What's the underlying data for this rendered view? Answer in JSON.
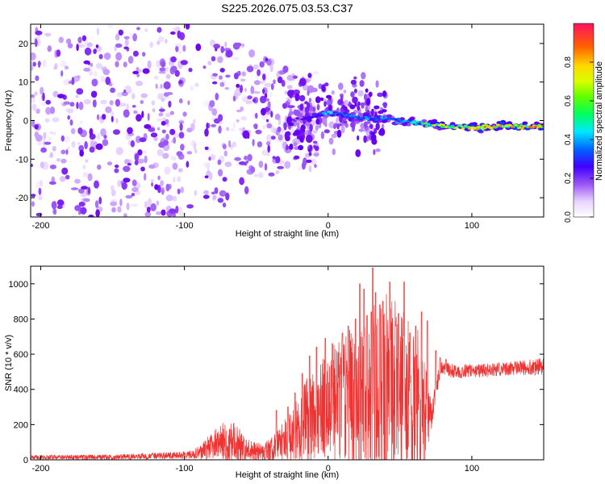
{
  "title": "S225.2026.075.03.53.C37",
  "chart_data": [
    {
      "type": "heatmap",
      "title": "S225.2026.075.03.53.C37",
      "xlabel": "Height of straight line (km)",
      "ylabel": "Frequency (Hz)",
      "xlim": [
        -207,
        150
      ],
      "ylim": [
        -25,
        25
      ],
      "x_ticks": [
        -200,
        -100,
        0,
        100
      ],
      "y_ticks": [
        -20,
        -10,
        0,
        10,
        20
      ],
      "colorbar": {
        "label": "Normalized spectral amplitude",
        "range": [
          0,
          1
        ],
        "ticks": [
          0.0,
          0.2,
          0.4,
          0.6,
          0.8
        ],
        "tick_labels": [
          "0.0",
          "0.2",
          "0.4",
          "0.6",
          "0.8"
        ],
        "colormap": [
          "#ffffff",
          "#d8b8ff",
          "#9a55f5",
          "#6a00f0",
          "#3a00ff",
          "#0064ff",
          "#00e8ff",
          "#00ff60",
          "#b8ff00",
          "#ffd800",
          "#ff6000",
          "#ff1060"
        ]
      },
      "ridge": {
        "x": [
          -25,
          -10,
          0,
          10,
          25,
          40,
          60,
          80,
          100,
          120,
          150
        ],
        "freq": [
          0.0,
          1.0,
          2.0,
          1.5,
          0.5,
          0.5,
          -0.5,
          -1.5,
          -1.8,
          -1.5,
          -1.5
        ],
        "peak_amplitude": [
          0.25,
          0.45,
          0.6,
          0.5,
          0.55,
          0.55,
          0.65,
          0.85,
          0.9,
          0.95,
          1.0
        ]
      }
    },
    {
      "type": "line",
      "xlabel": "Height of straight line (km)",
      "ylabel": "SNR (10 * v/v)",
      "xlim": [
        -207,
        150
      ],
      "ylim": [
        0,
        1100
      ],
      "x_ticks": [
        -200,
        -100,
        0,
        100
      ],
      "y_ticks": [
        0,
        200,
        400,
        600,
        800,
        1000
      ],
      "series": [
        {
          "name": "SNR",
          "color": "#ee3333",
          "envelope_x": [
            -207,
            -150,
            -105,
            -95,
            -85,
            -75,
            -65,
            -55,
            -45,
            -35,
            -25,
            -15,
            -5,
            5,
            15,
            25,
            35,
            45,
            55,
            65,
            72,
            78,
            90,
            110,
            130,
            150
          ],
          "envelope_base": [
            15,
            15,
            25,
            30,
            60,
            110,
            90,
            50,
            40,
            80,
            150,
            220,
            280,
            320,
            350,
            300,
            400,
            380,
            350,
            300,
            250,
            520,
            500,
            510,
            520,
            530
          ],
          "envelope_amp": [
            12,
            15,
            20,
            25,
            60,
            100,
            120,
            60,
            50,
            90,
            150,
            250,
            280,
            350,
            400,
            450,
            600,
            550,
            500,
            400,
            80,
            40,
            40,
            40,
            40,
            50
          ],
          "peak_markers": [
            [
              -36,
              280
            ],
            [
              -28,
              300
            ],
            [
              -23,
              380
            ],
            [
              -18,
              490
            ],
            [
              -13,
              590
            ],
            [
              -8,
              640
            ],
            [
              -2,
              690
            ],
            [
              3,
              660
            ],
            [
              10,
              720
            ],
            [
              14,
              760
            ],
            [
              19,
              800
            ],
            [
              22,
              1000
            ],
            [
              25,
              970
            ],
            [
              27,
              820
            ],
            [
              30,
              840
            ],
            [
              31,
              1090
            ],
            [
              33,
              950
            ],
            [
              36,
              880
            ],
            [
              38,
              900
            ],
            [
              43,
              1010
            ],
            [
              47,
              760
            ],
            [
              49,
              830
            ],
            [
              53,
              1010
            ],
            [
              57,
              720
            ],
            [
              61,
              760
            ],
            [
              65,
              840
            ],
            [
              69,
              790
            ],
            [
              75,
              620
            ],
            [
              78,
              580
            ],
            [
              82,
              570
            ]
          ]
        }
      ]
    }
  ]
}
